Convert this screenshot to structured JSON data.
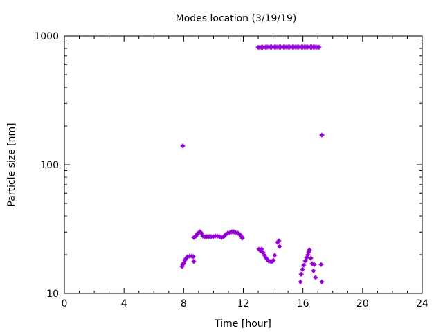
{
  "chart_data": {
    "type": "scatter",
    "title": "Modes location (3/19/19)",
    "xlabel": "Time [hour]",
    "ylabel": "Particle size [nm]",
    "xlim": [
      0,
      24
    ],
    "ylim": [
      10,
      1000
    ],
    "yscale": "log",
    "xticks": [
      "0",
      "4",
      "8",
      "12",
      "16",
      "20",
      "24"
    ],
    "yticks": [
      "10",
      "100",
      "1000"
    ],
    "grid": false,
    "legend": "none",
    "point_color": "#9400d3",
    "x": [
      7.94,
      7.89,
      7.94,
      7.99,
      8.08,
      8.17,
      8.26,
      8.4,
      8.54,
      8.64,
      8.68,
      8.68,
      8.82,
      8.91,
      9.01,
      9.1,
      9.19,
      9.29,
      9.42,
      9.56,
      9.7,
      9.84,
      9.98,
      10.12,
      10.26,
      10.4,
      10.54,
      10.68,
      10.81,
      10.96,
      11.1,
      11.23,
      11.37,
      11.49,
      11.65,
      11.79,
      11.89,
      11.93,
      13.05,
      13.14,
      13.23,
      13.32,
      13.42,
      13.51,
      13.6,
      13.7,
      13.83,
      13.93,
      14.02,
      14.11,
      14.3,
      14.39,
      14.44,
      15.83,
      15.88,
      15.97,
      16.06,
      16.16,
      16.25,
      16.34,
      16.39,
      16.43,
      16.53,
      16.62,
      16.76,
      17.22,
      16.71,
      16.85,
      17.27,
      17.27,
      13.0,
      13.1,
      13.2,
      13.3,
      13.4,
      13.5,
      13.6,
      13.7,
      13.8,
      13.9,
      14.0,
      14.1,
      14.2,
      14.3,
      14.4,
      14.5,
      14.6,
      14.7,
      14.8,
      14.9,
      15.0,
      15.1,
      15.2,
      15.3,
      15.4,
      15.5,
      15.6,
      15.7,
      15.8,
      15.9,
      16.0,
      16.1,
      16.2,
      16.3,
      16.4,
      16.5,
      16.6,
      16.7,
      16.8,
      16.9,
      17.0,
      17.08
    ],
    "y": [
      140,
      16.2,
      16.8,
      17.2,
      18.1,
      18.8,
      19.3,
      19.5,
      19.5,
      19.3,
      17.7,
      27.2,
      27.9,
      29.0,
      29.7,
      30.1,
      29.4,
      27.9,
      27.6,
      27.6,
      27.6,
      27.6,
      27.6,
      27.9,
      27.9,
      27.6,
      27.2,
      27.6,
      28.6,
      29.4,
      29.7,
      30.1,
      30.1,
      29.7,
      29.4,
      28.6,
      27.6,
      26.9,
      22.1,
      21.5,
      22.1,
      20.8,
      19.8,
      19.0,
      18.3,
      17.9,
      17.7,
      17.7,
      18.1,
      19.8,
      25.0,
      25.6,
      23.2,
      12.3,
      14.1,
      15.4,
      16.6,
      17.9,
      19.0,
      20.0,
      21.0,
      21.8,
      18.8,
      17.0,
      16.8,
      16.8,
      15.0,
      13.3,
      12.3,
      170,
      815,
      815,
      815,
      818,
      818,
      818,
      820,
      820,
      820,
      820,
      820,
      820,
      820,
      820,
      820,
      820,
      820,
      820,
      820,
      820,
      820,
      820,
      820,
      820,
      820,
      820,
      820,
      820,
      820,
      820,
      820,
      820,
      820,
      820,
      820,
      820,
      820,
      820,
      820,
      818,
      818,
      818
    ]
  }
}
